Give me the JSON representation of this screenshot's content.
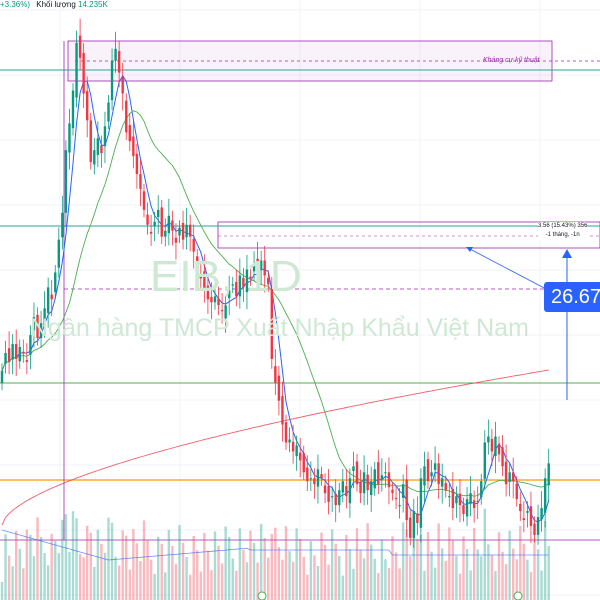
{
  "header": {
    "change": "+3.36%)",
    "volume_label": "Khối lượng",
    "volume_value": "14.235K"
  },
  "watermark": {
    "symbol": "EIB, 1D",
    "name": "Ngân hàng TMCP Xuất Nhập Khẩu Việt Nam"
  },
  "price_tag": "26.67",
  "resistance_label": "Kháng cự kỹ thuật",
  "measure": {
    "line1": "3.56 (15.43%) 356",
    "line2": "-1 tháng, -1n"
  },
  "colors": {
    "up": "#089981",
    "down": "#f23645",
    "ma_fast": "#2962ff",
    "ma_mid": "#4caf50",
    "ma_slow": "#f23645",
    "zone": "#9c27b0",
    "support": "#ff9800",
    "accent": "#2962ff"
  },
  "chart_data": {
    "type": "candlestick",
    "y_range": [
      19.2,
      36.3
    ],
    "closes": [
      24.2,
      24.8,
      24.5,
      25.1,
      24.6,
      25.0,
      24.8,
      24.5,
      25.4,
      26.0,
      25.3,
      25.8,
      26.3,
      27.0,
      26.6,
      27.5,
      28.6,
      29.5,
      31.6,
      32.5,
      33.6,
      35.2,
      34.7,
      33.5,
      32.6,
      31.2,
      31.6,
      32.0,
      31.5,
      32.4,
      33.2,
      34.6,
      35.0,
      34.2,
      33.5,
      32.2,
      31.9,
      31.4,
      30.8,
      30.3,
      29.6,
      29.1,
      28.8,
      29.2,
      29.6,
      28.7,
      28.9,
      29.4,
      28.9,
      28.5,
      29.0,
      28.6,
      29.1,
      28.7,
      28.2,
      27.6,
      27.3,
      26.9,
      26.6,
      26.5,
      26.7,
      26.4,
      26.2,
      26.4,
      26.9,
      27.1,
      26.7,
      27.4,
      27.0,
      27.6,
      27.3,
      27.8,
      27.5,
      27.9,
      27.4,
      27.1,
      24.6,
      23.8,
      23.2,
      22.4,
      21.8,
      21.9,
      21.5,
      21.7,
      21.2,
      20.8,
      20.5,
      20.6,
      20.4,
      20.9,
      20.6,
      20.1,
      19.8,
      20.0,
      19.7,
      20.2,
      20.5,
      20.0,
      20.6,
      21.0,
      20.4,
      20.1,
      20.8,
      20.2,
      20.5,
      20.9,
      20.4,
      20.7,
      20.8,
      20.3,
      20.1,
      19.9,
      19.7,
      20.4,
      19.2,
      18.6,
      19.5,
      19.1,
      20.6,
      21.0,
      20.5,
      20.8,
      21.1,
      20.4,
      20.6,
      20.2,
      20.0,
      19.6,
      20.0,
      19.7,
      19.4,
      19.9,
      20.1,
      19.6,
      19.8,
      20.5,
      21.8,
      22.0,
      21.5,
      22.0,
      21.4,
      21.0,
      20.4,
      20.8,
      20.5,
      19.9,
      19.5,
      19.2,
      19.5,
      19.0,
      18.7,
      19.3,
      19.6,
      20.6,
      21.1
    ]
  }
}
